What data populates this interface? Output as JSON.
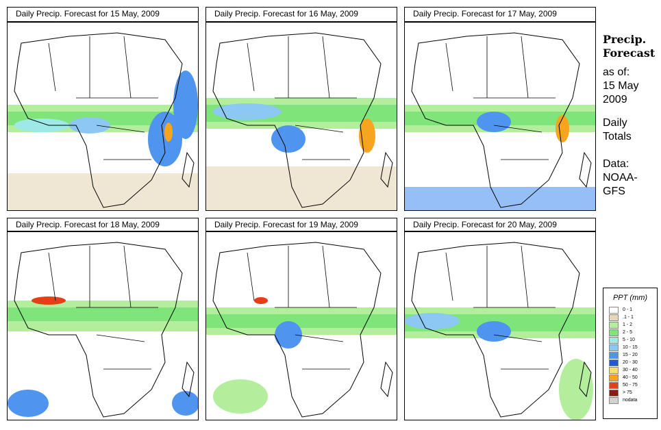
{
  "panels": [
    {
      "title": "Daily Precip. Forecast for  15 May, 2009"
    },
    {
      "title": "Daily Precip. Forecast for  16 May, 2009"
    },
    {
      "title": "Daily Precip. Forecast for  17 May, 2009"
    },
    {
      "title": "Daily Precip. Forecast for  18 May, 2009"
    },
    {
      "title": "Daily Precip. Forecast for  19 May, 2009"
    },
    {
      "title": "Daily Precip. Forecast for  20 May, 2009"
    }
  ],
  "sidebar": {
    "title_line1": "Precip.",
    "title_line2": "Forecast",
    "asof_label": "as of:",
    "asof_date_line1": "15 May",
    "asof_date_line2": "2009",
    "totals_line1": "Daily",
    "totals_line2": "Totals",
    "data_line1": "Data:",
    "data_line2": "NOAA-",
    "data_line3": "GFS"
  },
  "legend": {
    "title": "PPT (mm)",
    "items": [
      {
        "label": "0 - 1",
        "color": "#ffffff"
      },
      {
        "label": ".1 - 1",
        "color": "#e6d6b8"
      },
      {
        "label": "1 - 2",
        "color": "#b3ee9c"
      },
      {
        "label": "2 - 5",
        "color": "#7fe57a"
      },
      {
        "label": "5 - 10",
        "color": "#9ee8e8"
      },
      {
        "label": "10 - 15",
        "color": "#8cc8f2"
      },
      {
        "label": "15 - 20",
        "color": "#4f95f0"
      },
      {
        "label": "20 - 30",
        "color": "#2456d8"
      },
      {
        "label": "30 - 40",
        "color": "#f5e06e"
      },
      {
        "label": "40 - 50",
        "color": "#f7a51e"
      },
      {
        "label": "50 - 75",
        "color": "#e63e17"
      },
      {
        "label": "> 75",
        "color": "#8f1a12"
      },
      {
        "label": "nodata",
        "color": "#d2d2d2"
      }
    ]
  }
}
